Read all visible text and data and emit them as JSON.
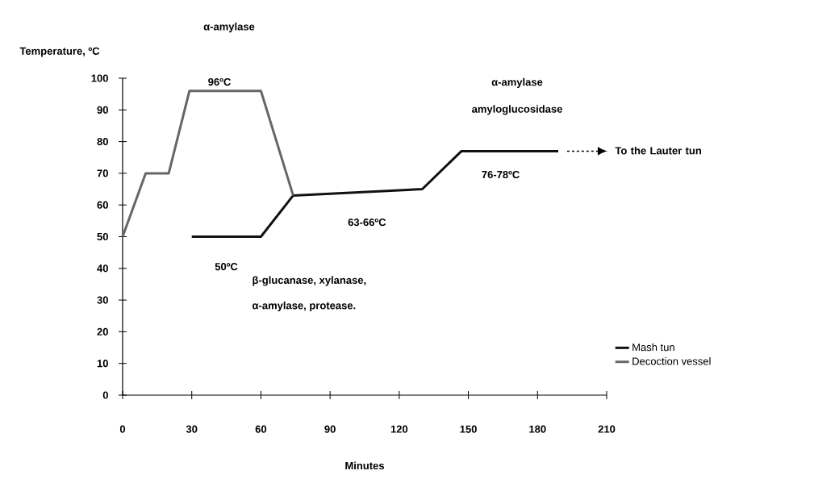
{
  "chart_data": {
    "type": "line",
    "xlabel": "Minutes",
    "ylabel": "Temperature, ºC",
    "xlim": [
      0,
      210
    ],
    "ylim": [
      0,
      100
    ],
    "xticks": [
      0,
      30,
      60,
      90,
      120,
      150,
      180,
      210
    ],
    "yticks": [
      0,
      10,
      20,
      30,
      40,
      50,
      60,
      70,
      80,
      90,
      100
    ],
    "series": [
      {
        "name": "Mash tun",
        "color": "#111111",
        "x": [
          30,
          60,
          74,
          130,
          147,
          189
        ],
        "values": [
          50,
          50,
          63,
          65,
          77,
          77
        ]
      },
      {
        "name": "Decoction vessel",
        "color": "#666666",
        "x": [
          0,
          10,
          20,
          29,
          60,
          74
        ],
        "values": [
          50,
          70,
          70,
          96,
          96,
          63
        ]
      }
    ],
    "annotations": [
      {
        "text": "96ºC",
        "x": 42,
        "y": 96
      },
      {
        "text": "50ºC",
        "x": 45,
        "y": 50
      },
      {
        "text": "63-66ºC",
        "x": 106,
        "y": 64
      },
      {
        "text": "76-78ºC",
        "x": 164,
        "y": 77
      },
      "α-amylase",
      "α-amylase",
      "amyloglucosidase",
      "β-glucanase, xylanase,",
      "α-amylase, protease.",
      "To the Lauter tun"
    ],
    "legend": "bottom right",
    "grid": false,
    "marker": "none",
    "line_style": "solid"
  }
}
